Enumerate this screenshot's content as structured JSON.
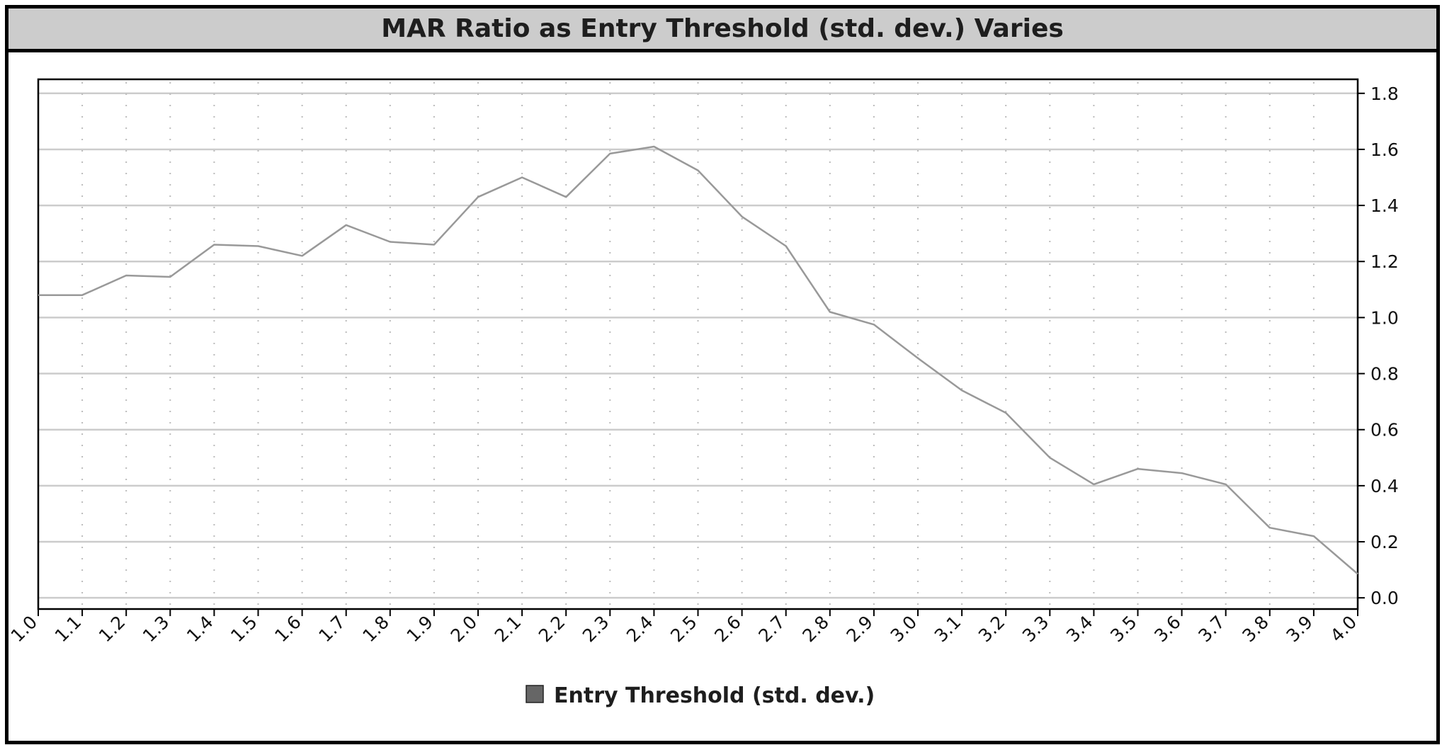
{
  "chart_data": {
    "type": "line",
    "title": "MAR Ratio as Entry Threshold (std. dev.) Varies",
    "xlabel": "",
    "ylabel": "",
    "x": [
      1.0,
      1.1,
      1.2,
      1.3,
      1.4,
      1.5,
      1.6,
      1.7,
      1.8,
      1.9,
      2.0,
      2.1,
      2.2,
      2.3,
      2.4,
      2.5,
      2.6,
      2.7,
      2.8,
      2.9,
      3.0,
      3.1,
      3.2,
      3.3,
      3.4,
      3.5,
      3.6,
      3.7,
      3.8,
      3.9,
      4.0
    ],
    "x_tick_labels": [
      "1.0",
      "1.1",
      "1.2",
      "1.3",
      "1.4",
      "1.5",
      "1.6",
      "1.7",
      "1.8",
      "1.9",
      "2.0",
      "2.1",
      "2.2",
      "2.3",
      "2.4",
      "2.5",
      "2.6",
      "2.7",
      "2.8",
      "2.9",
      "3.0",
      "3.1",
      "3.2",
      "3.3",
      "3.4",
      "3.5",
      "3.6",
      "3.7",
      "3.8",
      "3.9",
      "4.0"
    ],
    "y_ticks": [
      0.0,
      0.2,
      0.4,
      0.6,
      0.8,
      1.0,
      1.2,
      1.4,
      1.6,
      1.8
    ],
    "y_tick_labels": [
      "0.0",
      "0.2",
      "0.4",
      "0.6",
      "0.8",
      "1.0",
      "1.2",
      "1.4",
      "1.6",
      "1.8"
    ],
    "xlim": [
      1.0,
      4.0
    ],
    "ylim": [
      -0.04,
      1.85
    ],
    "y_axis_position": "right",
    "grid": {
      "horizontal": "solid",
      "vertical": "dotted"
    },
    "legend_position": "bottom-center",
    "series": [
      {
        "name": "Entry Threshold (std. dev.)",
        "values": [
          1.08,
          1.08,
          1.15,
          1.145,
          1.26,
          1.255,
          1.22,
          1.33,
          1.27,
          1.26,
          1.43,
          1.5,
          1.43,
          1.585,
          1.61,
          1.525,
          1.36,
          1.255,
          1.02,
          0.975,
          0.855,
          0.74,
          0.66,
          0.5,
          0.405,
          0.46,
          0.445,
          0.405,
          0.25,
          0.22,
          0.085
        ]
      }
    ],
    "colors": {
      "line": "#999999",
      "legend_swatch": "#666666",
      "grid": "#cccccc",
      "title_background": "#cccccc"
    }
  }
}
